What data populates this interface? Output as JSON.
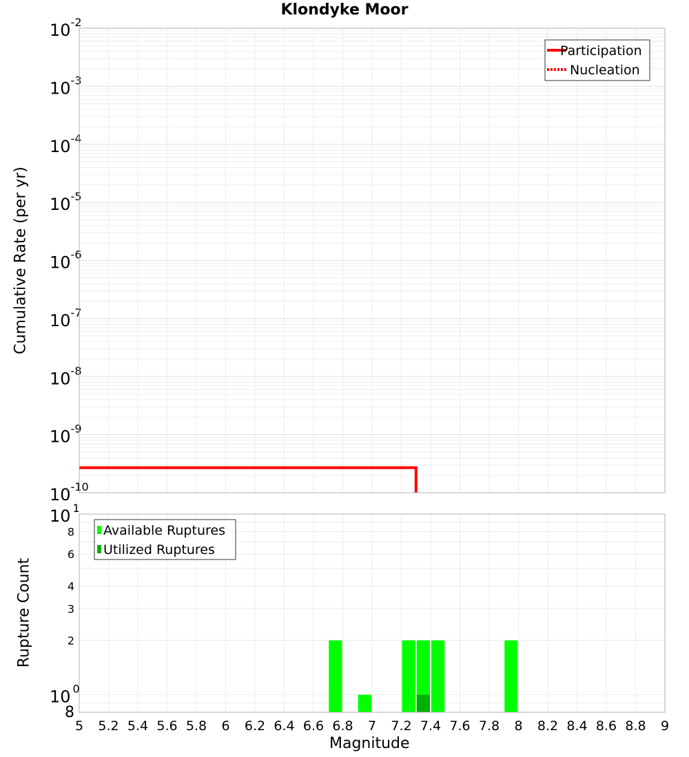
{
  "title": "Klondyke Moor",
  "top_plot": {
    "ylabel": "Cumulative Rate (per yr)",
    "legend": [
      {
        "label": "Participation",
        "color": "#ff0000",
        "style": "solid"
      },
      {
        "label": "Nucleation",
        "color": "#ff0000",
        "style": "dotted"
      }
    ]
  },
  "bottom_plot": {
    "ylabel": "Rupture Count",
    "xlabel": "Magnitude",
    "legend": [
      {
        "label": "Available Ruptures",
        "color": "#00ff00"
      },
      {
        "label": "Utilized Ruptures",
        "color": "#00b000"
      }
    ]
  },
  "chart_data": [
    {
      "type": "line",
      "title": "Klondyke Moor",
      "xlabel": "Magnitude",
      "ylabel": "Cumulative Rate (per yr)",
      "xlim": [
        5,
        9
      ],
      "ylim": [
        1e-10,
        0.01
      ],
      "yscale": "log",
      "grid": true,
      "legend_position": "upper right",
      "y_tick_labels": [
        "10^-2",
        "10^-3",
        "10^-4",
        "10^-5",
        "10^-6",
        "10^-7",
        "10^-8",
        "10^-9",
        "10^-10"
      ],
      "series": [
        {
          "name": "Participation",
          "color": "#ff0000",
          "style": "solid",
          "x": [
            5.0,
            7.3,
            7.3
          ],
          "y": [
            2.7e-10,
            2.7e-10,
            1e-10
          ]
        },
        {
          "name": "Nucleation",
          "color": "#ff0000",
          "style": "dotted",
          "x": [],
          "y": []
        }
      ]
    },
    {
      "type": "bar",
      "xlabel": "Magnitude",
      "ylabel": "Rupture Count",
      "xlim": [
        5,
        9
      ],
      "ylim": [
        0.8,
        10
      ],
      "yscale": "log",
      "grid": true,
      "legend_position": "upper left",
      "x_tick_labels": [
        "5",
        "5.2",
        "5.4",
        "5.6",
        "5.8",
        "6",
        "6.2",
        "6.4",
        "6.6",
        "6.8",
        "7",
        "7.2",
        "7.4",
        "7.6",
        "7.8",
        "8",
        "8.2",
        "8.4",
        "8.6",
        "8.8",
        "9"
      ],
      "y_tick_labels": [
        "8",
        "10^0",
        "2",
        "3",
        "4",
        "6",
        "8",
        "10^1"
      ],
      "bin_width": 0.1,
      "categories": [
        6.75,
        6.95,
        7.25,
        7.35,
        7.45,
        7.95
      ],
      "series": [
        {
          "name": "Available Ruptures",
          "color": "#00ff00",
          "values": [
            2,
            1,
            2,
            2,
            2,
            2
          ]
        },
        {
          "name": "Utilized Ruptures",
          "color": "#00b000",
          "values": [
            0,
            0,
            0,
            1,
            0,
            0
          ]
        }
      ]
    }
  ]
}
